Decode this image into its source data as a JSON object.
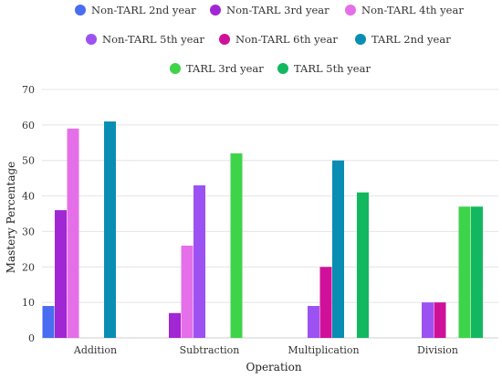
{
  "chart_data": {
    "type": "bar",
    "xlabel": "Operation",
    "ylabel": "Mastery Percentage",
    "ylim": [
      0,
      70
    ],
    "yticks": [
      0,
      10,
      20,
      30,
      40,
      50,
      60,
      70
    ],
    "grid": true,
    "legend_position": "top",
    "categories": [
      "Addition",
      "Subtraction",
      "Multiplication",
      "Division"
    ],
    "series": [
      {
        "name": "Non-TARL 2nd year",
        "color": "#4a6cf0",
        "values": [
          9,
          0,
          0,
          0
        ]
      },
      {
        "name": "Non-TARL 3rd year",
        "color": "#a126d4",
        "values": [
          36,
          7,
          0,
          0
        ]
      },
      {
        "name": "Non-TARL 4th year",
        "color": "#e56fe8",
        "values": [
          59,
          26,
          0,
          0
        ]
      },
      {
        "name": "Non-TARL 5th year",
        "color": "#9c52f2",
        "values": [
          0,
          43,
          9,
          10
        ]
      },
      {
        "name": "Non-TARL 6th year",
        "color": "#d0109a",
        "values": [
          0,
          0,
          20,
          10
        ]
      },
      {
        "name": "TARL 2nd year",
        "color": "#0a8db3",
        "values": [
          61,
          0,
          50,
          0
        ]
      },
      {
        "name": "TARL 3rd year",
        "color": "#3ed44a",
        "values": [
          0,
          52,
          0,
          37
        ]
      },
      {
        "name": "TARL 5th year",
        "color": "#12b85f",
        "values": [
          0,
          0,
          41,
          37
        ]
      }
    ]
  }
}
